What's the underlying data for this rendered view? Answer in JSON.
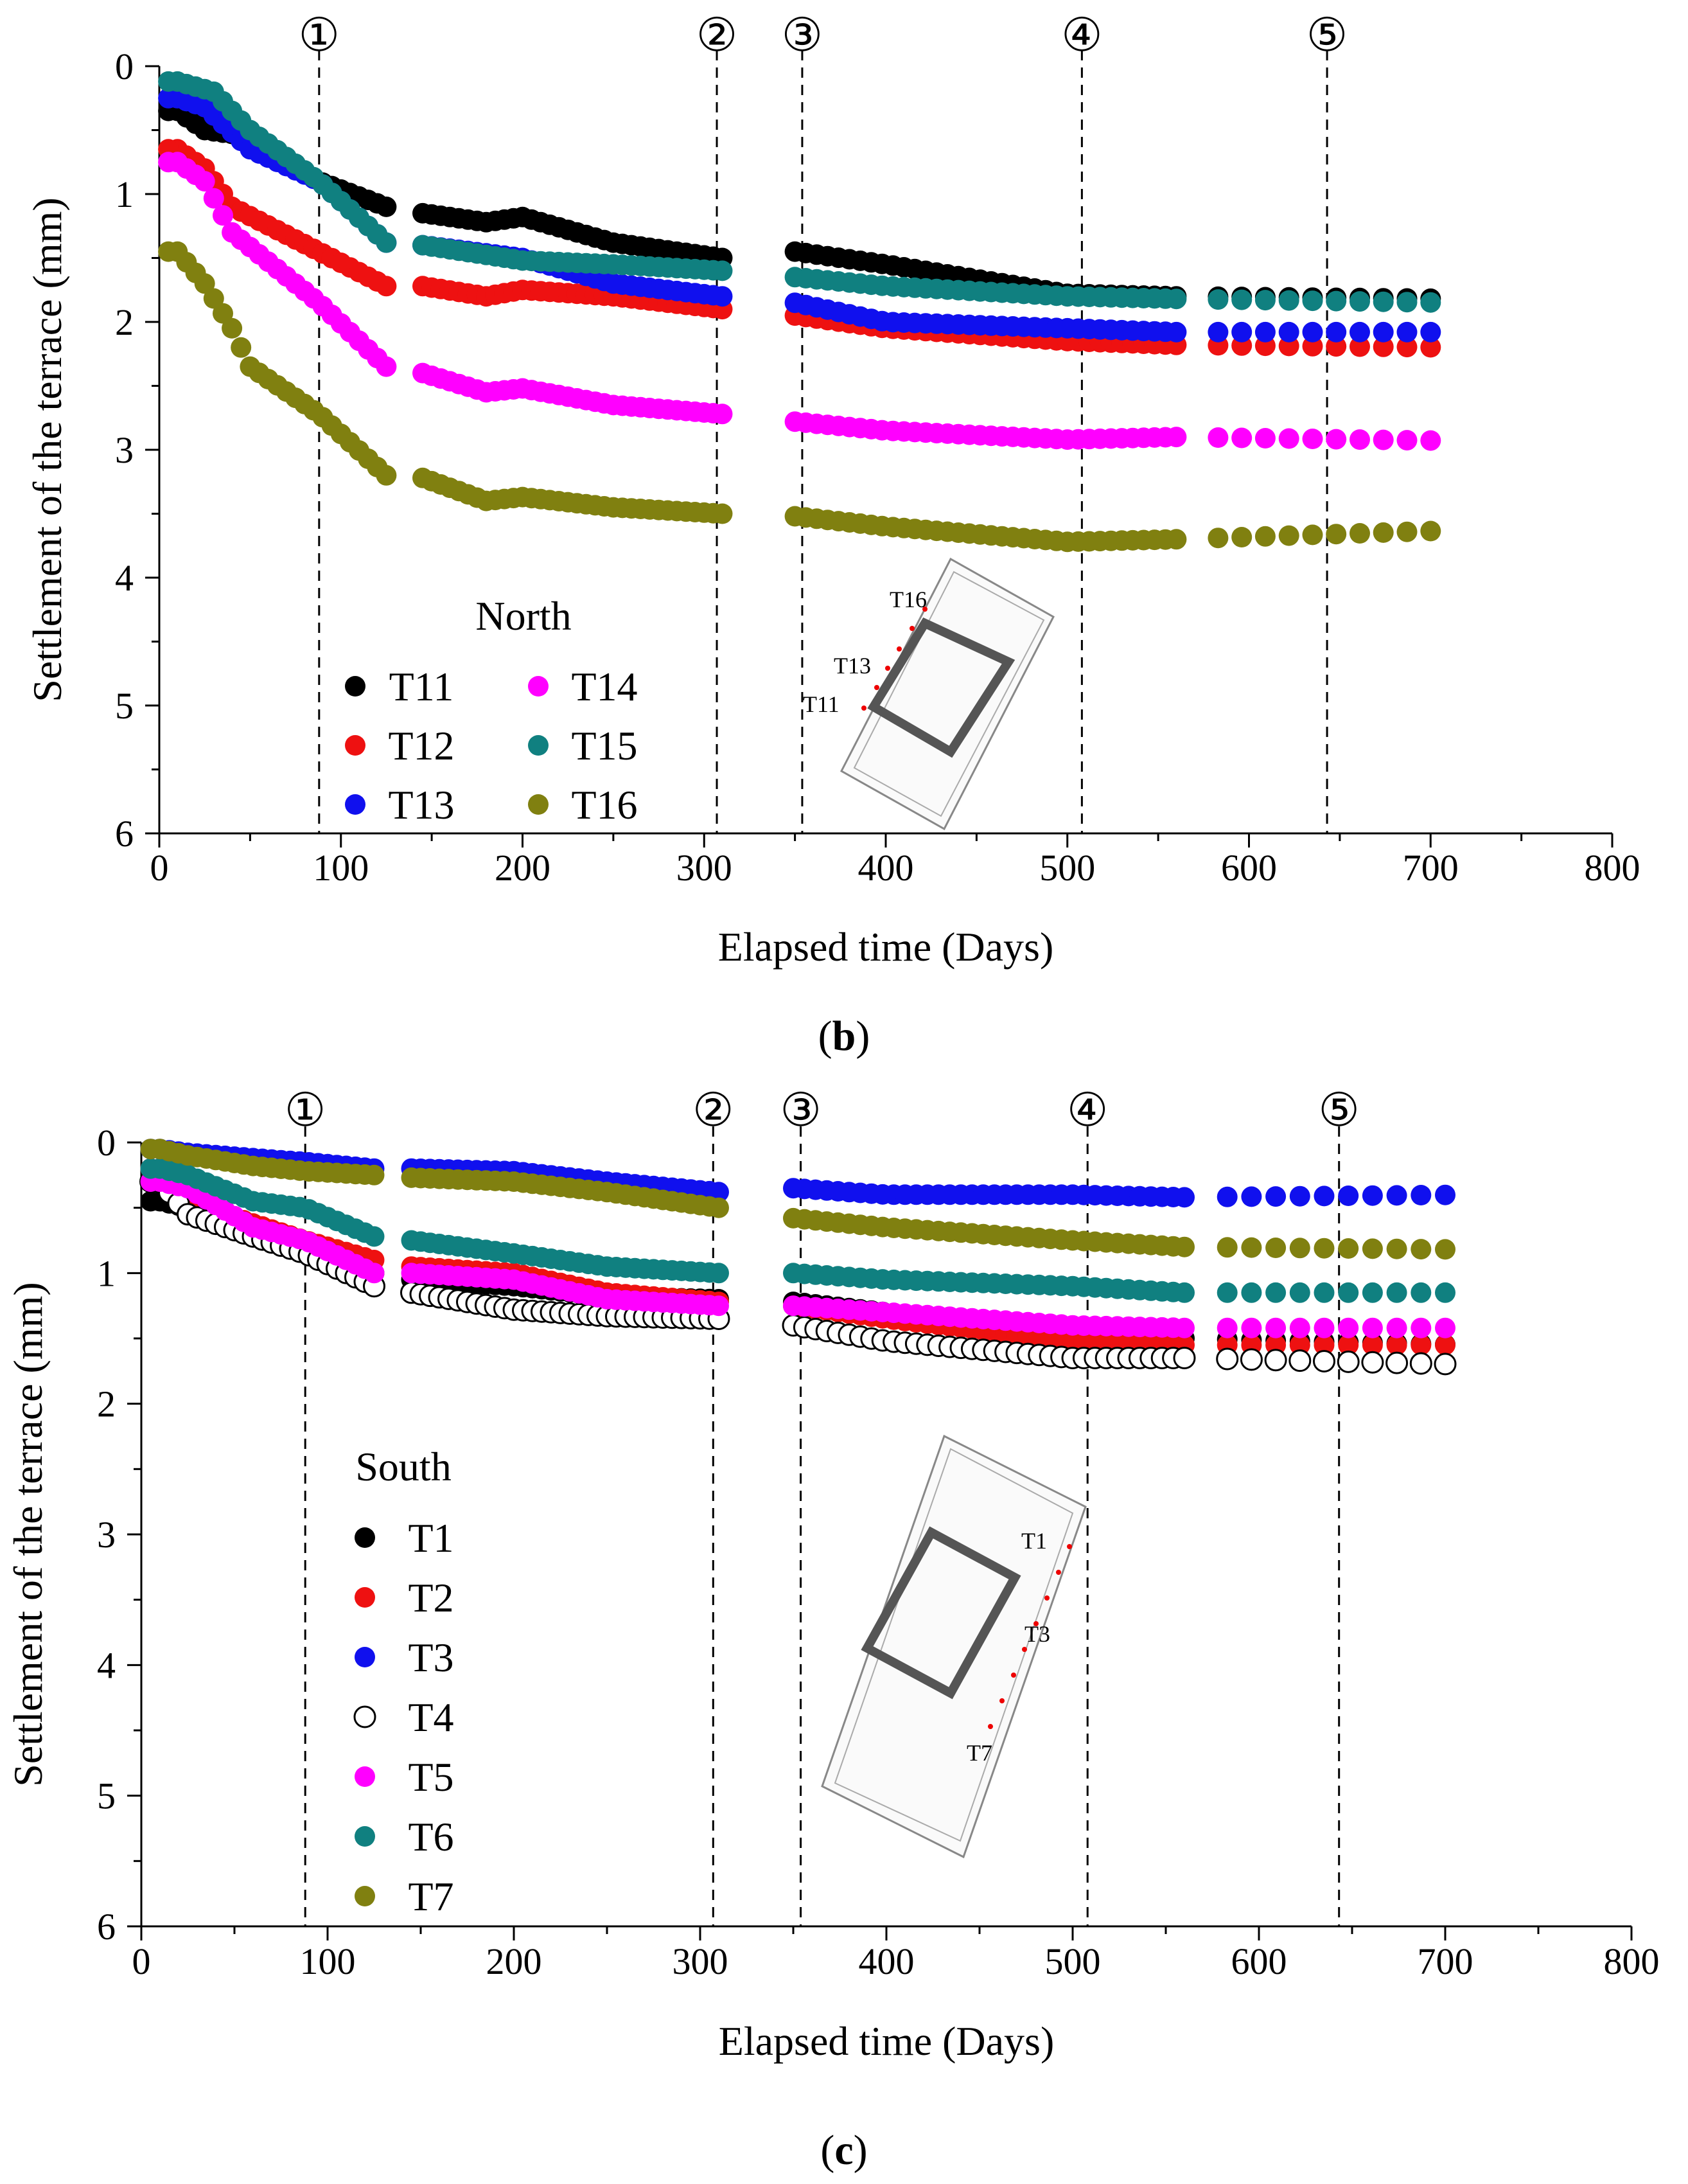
{
  "chart_data": [
    {
      "id": "b",
      "type": "scatter",
      "panel_label": "b",
      "xlabel": "Elapsed time (Days)",
      "ylabel": "Settlement of the terrace (mm)",
      "xlim": [
        0,
        800
      ],
      "ylim": [
        0,
        6
      ],
      "y_inverted": true,
      "x_ticks": [
        0,
        100,
        200,
        300,
        400,
        500,
        600,
        700,
        800
      ],
      "y_ticks": [
        0,
        1,
        2,
        3,
        4,
        5,
        6
      ],
      "stage_lines": [
        {
          "label": "①",
          "x": 88
        },
        {
          "label": "②",
          "x": 307
        },
        {
          "label": "③",
          "x": 354
        },
        {
          "label": "④",
          "x": 508
        },
        {
          "label": "⑤",
          "x": 643
        }
      ],
      "legend_title": "North",
      "legend_columns": 2,
      "legend_placement": "lower-left",
      "inset_labels": [
        "T16",
        "T13",
        "T11"
      ],
      "series": [
        {
          "name": "T11",
          "color": "#000000",
          "filled": true,
          "knots": [
            [
              10,
              0.35
            ],
            [
              25,
              0.5
            ],
            [
              50,
              0.55
            ],
            [
              88,
              0.9
            ],
            [
              125,
              1.1
            ],
            [
              145,
              1.15
            ],
            [
              180,
              1.22
            ],
            [
              200,
              1.18
            ],
            [
              250,
              1.38
            ],
            [
              310,
              1.5
            ],
            [
              350,
              1.45
            ],
            [
              400,
              1.55
            ],
            [
              500,
              1.78
            ],
            [
              560,
              1.8
            ],
            [
              712,
              1.82
            ]
          ]
        },
        {
          "name": "T12",
          "color": "#ee1111",
          "filled": true,
          "knots": [
            [
              10,
              0.65
            ],
            [
              25,
              0.8
            ],
            [
              40,
              1.1
            ],
            [
              88,
              1.45
            ],
            [
              125,
              1.72
            ],
            [
              145,
              1.72
            ],
            [
              180,
              1.8
            ],
            [
              200,
              1.75
            ],
            [
              250,
              1.8
            ],
            [
              310,
              1.9
            ],
            [
              350,
              1.95
            ],
            [
              400,
              2.05
            ],
            [
              500,
              2.15
            ],
            [
              560,
              2.18
            ],
            [
              712,
              2.2
            ]
          ]
        },
        {
          "name": "T13",
          "color": "#1010ee",
          "filled": true,
          "knots": [
            [
              10,
              0.25
            ],
            [
              25,
              0.32
            ],
            [
              50,
              0.65
            ],
            [
              88,
              0.9
            ],
            [
              125,
              1.38
            ],
            [
              145,
              1.4
            ],
            [
              200,
              1.5
            ],
            [
              250,
              1.7
            ],
            [
              310,
              1.8
            ],
            [
              350,
              1.85
            ],
            [
              400,
              2.0
            ],
            [
              500,
              2.05
            ],
            [
              560,
              2.08
            ],
            [
              712,
              2.08
            ]
          ]
        },
        {
          "name": "T14",
          "color": "#ff00ff",
          "filled": true,
          "knots": [
            [
              10,
              0.75
            ],
            [
              25,
              0.9
            ],
            [
              40,
              1.3
            ],
            [
              88,
              1.85
            ],
            [
              125,
              2.35
            ],
            [
              145,
              2.4
            ],
            [
              180,
              2.55
            ],
            [
              200,
              2.52
            ],
            [
              250,
              2.65
            ],
            [
              310,
              2.72
            ],
            [
              350,
              2.78
            ],
            [
              400,
              2.85
            ],
            [
              500,
              2.92
            ],
            [
              560,
              2.9
            ],
            [
              712,
              2.93
            ]
          ]
        },
        {
          "name": "T15",
          "color": "#108080",
          "filled": true,
          "knots": [
            [
              10,
              0.12
            ],
            [
              30,
              0.2
            ],
            [
              50,
              0.5
            ],
            [
              88,
              0.9
            ],
            [
              125,
              1.38
            ],
            [
              145,
              1.4
            ],
            [
              200,
              1.52
            ],
            [
              250,
              1.55
            ],
            [
              310,
              1.6
            ],
            [
              350,
              1.65
            ],
            [
              400,
              1.72
            ],
            [
              500,
              1.8
            ],
            [
              560,
              1.82
            ],
            [
              712,
              1.85
            ]
          ]
        },
        {
          "name": "T16",
          "color": "#808010",
          "filled": true,
          "knots": [
            [
              10,
              1.45
            ],
            [
              25,
              1.7
            ],
            [
              40,
              2.05
            ],
            [
              50,
              2.35
            ],
            [
              88,
              2.72
            ],
            [
              125,
              3.2
            ],
            [
              145,
              3.22
            ],
            [
              180,
              3.4
            ],
            [
              200,
              3.37
            ],
            [
              250,
              3.45
            ],
            [
              310,
              3.5
            ],
            [
              350,
              3.52
            ],
            [
              400,
              3.6
            ],
            [
              500,
              3.72
            ],
            [
              560,
              3.7
            ],
            [
              712,
              3.63
            ]
          ]
        }
      ]
    },
    {
      "id": "c",
      "type": "scatter",
      "panel_label": "c",
      "xlabel": "Elapsed time (Days)",
      "ylabel": "Settlement of the terrace (mm)",
      "xlim": [
        0,
        800
      ],
      "ylim": [
        0,
        6
      ],
      "y_inverted": true,
      "x_ticks": [
        0,
        100,
        200,
        300,
        400,
        500,
        600,
        700,
        800
      ],
      "y_ticks": [
        0,
        1,
        2,
        3,
        4,
        5,
        6
      ],
      "stage_lines": [
        {
          "label": "①",
          "x": 88
        },
        {
          "label": "②",
          "x": 307
        },
        {
          "label": "③",
          "x": 354
        },
        {
          "label": "④",
          "x": 508
        },
        {
          "label": "⑤",
          "x": 643
        }
      ],
      "legend_title": "South",
      "legend_columns": 1,
      "legend_placement": "lower-left",
      "inset_labels": [
        "T1",
        "T3",
        "T7"
      ],
      "series": [
        {
          "name": "T1",
          "color": "#000000",
          "filled": true,
          "knots": [
            [
              10,
              0.45
            ],
            [
              25,
              0.5
            ],
            [
              60,
              0.65
            ],
            [
              88,
              0.85
            ],
            [
              125,
              1.0
            ],
            [
              145,
              1.05
            ],
            [
              200,
              1.1
            ],
            [
              250,
              1.18
            ],
            [
              310,
              1.2
            ],
            [
              350,
              1.22
            ],
            [
              400,
              1.3
            ],
            [
              500,
              1.45
            ],
            [
              560,
              1.5
            ],
            [
              712,
              1.55
            ]
          ]
        },
        {
          "name": "T2",
          "color": "#ee1111",
          "filled": true,
          "knots": [
            [
              10,
              0.2
            ],
            [
              25,
              0.45
            ],
            [
              60,
              0.62
            ],
            [
              88,
              0.75
            ],
            [
              125,
              0.9
            ],
            [
              145,
              0.95
            ],
            [
              200,
              1.0
            ],
            [
              250,
              1.15
            ],
            [
              310,
              1.22
            ],
            [
              350,
              1.25
            ],
            [
              400,
              1.35
            ],
            [
              500,
              1.52
            ],
            [
              560,
              1.55
            ],
            [
              712,
              1.55
            ]
          ]
        },
        {
          "name": "T3",
          "color": "#1010ee",
          "filled": true,
          "knots": [
            [
              10,
              0.05
            ],
            [
              25,
              0.08
            ],
            [
              60,
              0.12
            ],
            [
              88,
              0.15
            ],
            [
              125,
              0.2
            ],
            [
              145,
              0.2
            ],
            [
              200,
              0.22
            ],
            [
              250,
              0.3
            ],
            [
              310,
              0.38
            ],
            [
              350,
              0.35
            ],
            [
              400,
              0.4
            ],
            [
              500,
              0.4
            ],
            [
              560,
              0.42
            ],
            [
              712,
              0.4
            ]
          ]
        },
        {
          "name": "T4",
          "color": "#000000",
          "filled": false,
          "knots": [
            [
              10,
              0.3
            ],
            [
              25,
              0.55
            ],
            [
              60,
              0.72
            ],
            [
              88,
              0.85
            ],
            [
              125,
              1.1
            ],
            [
              145,
              1.15
            ],
            [
              200,
              1.28
            ],
            [
              250,
              1.33
            ],
            [
              310,
              1.35
            ],
            [
              350,
              1.4
            ],
            [
              400,
              1.52
            ],
            [
              500,
              1.65
            ],
            [
              560,
              1.65
            ],
            [
              712,
              1.7
            ]
          ]
        },
        {
          "name": "T5",
          "color": "#ff00ff",
          "filled": true,
          "knots": [
            [
              10,
              0.3
            ],
            [
              25,
              0.35
            ],
            [
              60,
              0.65
            ],
            [
              88,
              0.75
            ],
            [
              125,
              1.0
            ],
            [
              145,
              1.0
            ],
            [
              200,
              1.05
            ],
            [
              250,
              1.2
            ],
            [
              310,
              1.25
            ],
            [
              350,
              1.25
            ],
            [
              400,
              1.3
            ],
            [
              500,
              1.4
            ],
            [
              560,
              1.42
            ],
            [
              712,
              1.42
            ]
          ]
        },
        {
          "name": "T6",
          "color": "#108080",
          "filled": true,
          "knots": [
            [
              10,
              0.2
            ],
            [
              25,
              0.25
            ],
            [
              60,
              0.45
            ],
            [
              88,
              0.5
            ],
            [
              125,
              0.72
            ],
            [
              145,
              0.75
            ],
            [
              200,
              0.85
            ],
            [
              250,
              0.95
            ],
            [
              310,
              1.0
            ],
            [
              350,
              1.0
            ],
            [
              400,
              1.05
            ],
            [
              500,
              1.1
            ],
            [
              560,
              1.15
            ],
            [
              712,
              1.15
            ]
          ]
        },
        {
          "name": "T7",
          "color": "#808010",
          "filled": true,
          "knots": [
            [
              10,
              0.05
            ],
            [
              25,
              0.1
            ],
            [
              60,
              0.18
            ],
            [
              88,
              0.22
            ],
            [
              125,
              0.25
            ],
            [
              145,
              0.27
            ],
            [
              200,
              0.3
            ],
            [
              250,
              0.38
            ],
            [
              310,
              0.5
            ],
            [
              350,
              0.58
            ],
            [
              400,
              0.65
            ],
            [
              500,
              0.75
            ],
            [
              560,
              0.8
            ],
            [
              712,
              0.82
            ]
          ]
        }
      ]
    }
  ],
  "captions": {
    "b": "(b)",
    "c": "(c)"
  }
}
